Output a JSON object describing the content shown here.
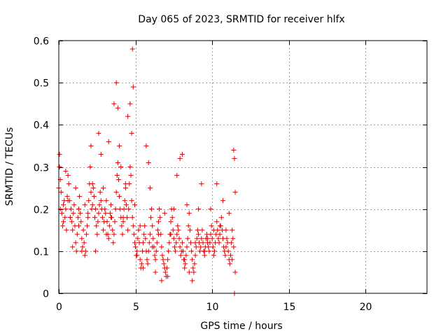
{
  "chart_data": {
    "type": "scatter",
    "title": "Day 065 of 2023, SRMTID for receiver hlfx",
    "xlabel": "GPS time / hours",
    "ylabel": "SRMTID / TECUs",
    "xlim": [
      0,
      24
    ],
    "ylim": [
      0,
      0.6
    ],
    "xticks": [
      0,
      5,
      10,
      15,
      20
    ],
    "xtick_labels": [
      "0",
      "5",
      "10",
      "15",
      "20"
    ],
    "yticks": [
      0,
      0.1,
      0.2,
      0.3,
      0.4,
      0.5,
      0.6
    ],
    "ytick_labels": [
      "0",
      "0.1",
      "0.2",
      "0.3",
      "0.4",
      "0.5",
      "0.6"
    ],
    "grid": true,
    "marker": "+",
    "marker_color": "#e00000",
    "series": [
      {
        "name": "SRMTID",
        "x": [
          0.0,
          0.05,
          0.1,
          0.15,
          0.2,
          0.25,
          0.3,
          0.35,
          0.4,
          0.45,
          0.5,
          0.55,
          0.6,
          0.65,
          0.7,
          0.75,
          0.8,
          0.85,
          0.9,
          0.95,
          1.0,
          1.05,
          1.1,
          1.15,
          1.2,
          1.25,
          1.3,
          1.35,
          1.4,
          1.45,
          1.5,
          1.55,
          1.6,
          1.65,
          1.7,
          1.75,
          1.8,
          1.85,
          1.9,
          1.95,
          2.0,
          2.05,
          2.1,
          2.15,
          2.2,
          2.25,
          2.3,
          2.35,
          2.4,
          2.45,
          2.5,
          2.55,
          2.6,
          2.65,
          2.7,
          2.75,
          2.8,
          2.85,
          2.9,
          2.95,
          3.0,
          3.05,
          3.1,
          3.15,
          3.2,
          3.25,
          3.3,
          3.35,
          3.4,
          3.45,
          3.5,
          3.55,
          3.6,
          3.65,
          3.7,
          3.75,
          3.8,
          3.85,
          3.9,
          3.95,
          4.0,
          4.05,
          4.1,
          4.15,
          4.2,
          4.25,
          4.3,
          4.35,
          4.4,
          4.45,
          4.5,
          4.55,
          4.6,
          4.65,
          4.7,
          4.75,
          4.8,
          4.85,
          4.9,
          4.95,
          5.0,
          5.05,
          5.1,
          5.15,
          5.2,
          5.25,
          5.3,
          5.35,
          5.4,
          5.45,
          5.5,
          5.55,
          5.6,
          5.65,
          5.7,
          5.75,
          5.8,
          5.85,
          5.9,
          5.95,
          6.0,
          6.05,
          6.1,
          6.15,
          6.2,
          6.25,
          6.3,
          6.35,
          6.4,
          6.45,
          6.5,
          6.55,
          6.6,
          6.65,
          6.7,
          6.75,
          6.8,
          6.85,
          6.9,
          6.95,
          7.0,
          7.05,
          7.1,
          7.15,
          7.2,
          7.25,
          7.3,
          7.35,
          7.4,
          7.45,
          7.5,
          7.55,
          7.6,
          7.65,
          7.7,
          7.75,
          7.8,
          7.85,
          7.9,
          7.95,
          8.0,
          8.05,
          8.1,
          8.15,
          8.2,
          8.25,
          8.3,
          8.35,
          8.4,
          8.45,
          8.5,
          8.55,
          8.6,
          8.65,
          8.7,
          8.75,
          8.8,
          8.85,
          8.9,
          8.95,
          9.0,
          9.05,
          9.1,
          9.15,
          9.2,
          9.25,
          9.3,
          9.35,
          9.4,
          9.45,
          9.5,
          9.55,
          9.6,
          9.65,
          9.7,
          9.75,
          9.8,
          9.85,
          9.9,
          9.95,
          10.0,
          10.05,
          10.1,
          10.15,
          10.2,
          10.25,
          10.3,
          10.35,
          10.4,
          10.45,
          10.5,
          10.55,
          10.6,
          10.65,
          10.7,
          10.75,
          10.8,
          10.85,
          10.9,
          10.95,
          11.0,
          11.05,
          11.1,
          11.15,
          11.2,
          11.25,
          11.3,
          11.35,
          11.4,
          11.45,
          11.5,
          0.05,
          0.1,
          0.3,
          0.45,
          0.6,
          0.75,
          0.9,
          1.1,
          1.3,
          1.5,
          1.7,
          1.9,
          2.1,
          2.2,
          2.4,
          2.6,
          2.75,
          2.9,
          3.1,
          3.25,
          3.4,
          3.6,
          3.75,
          3.85,
          3.95,
          4.05,
          4.2,
          4.35,
          4.5,
          4.65,
          4.75,
          4.8,
          4.85,
          4.95,
          5.1,
          5.3,
          5.5,
          5.7,
          5.85,
          5.95,
          6.1,
          6.3,
          6.5,
          6.7,
          6.9,
          7.1,
          7.3,
          7.5,
          7.7,
          7.9,
          8.05,
          8.2,
          8.35,
          8.5,
          8.7,
          8.9,
          9.1,
          9.3,
          9.5,
          9.7,
          9.9,
          10.1,
          10.3,
          10.5,
          10.7,
          10.9,
          11.1,
          11.3,
          11.4,
          11.45,
          11.5
        ],
        "y": [
          0.25,
          0.33,
          0.27,
          0.24,
          0.19,
          0.16,
          0.21,
          0.22,
          0.18,
          0.2,
          0.15,
          0.23,
          0.28,
          0.26,
          0.22,
          0.18,
          0.2,
          0.17,
          0.15,
          0.19,
          0.21,
          0.16,
          0.12,
          0.1,
          0.14,
          0.18,
          0.2,
          0.23,
          0.19,
          0.17,
          0.13,
          0.11,
          0.15,
          0.12,
          0.09,
          0.1,
          0.14,
          0.16,
          0.19,
          0.22,
          0.26,
          0.3,
          0.24,
          0.2,
          0.21,
          0.25,
          0.23,
          0.18,
          0.2,
          0.16,
          0.14,
          0.17,
          0.19,
          0.21,
          0.24,
          0.22,
          0.2,
          0.18,
          0.15,
          0.17,
          0.2,
          0.19,
          0.22,
          0.17,
          0.14,
          0.13,
          0.16,
          0.19,
          0.21,
          0.18,
          0.15,
          0.12,
          0.14,
          0.17,
          0.2,
          0.24,
          0.28,
          0.31,
          0.27,
          0.23,
          0.2,
          0.18,
          0.16,
          0.14,
          0.17,
          0.2,
          0.22,
          0.25,
          0.21,
          0.18,
          0.15,
          0.2,
          0.26,
          0.3,
          0.28,
          0.22,
          0.18,
          0.16,
          0.14,
          0.12,
          0.11,
          0.09,
          0.1,
          0.13,
          0.15,
          0.12,
          0.08,
          0.06,
          0.07,
          0.1,
          0.12,
          0.14,
          0.16,
          0.13,
          0.1,
          0.08,
          0.07,
          0.1,
          0.12,
          0.14,
          0.18,
          0.2,
          0.16,
          0.13,
          0.11,
          0.09,
          0.08,
          0.1,
          0.12,
          0.15,
          0.17,
          0.2,
          0.18,
          0.14,
          0.11,
          0.09,
          0.08,
          0.07,
          0.06,
          0.05,
          0.04,
          0.06,
          0.08,
          0.1,
          0.12,
          0.14,
          0.17,
          0.2,
          0.18,
          0.15,
          0.13,
          0.11,
          0.1,
          0.12,
          0.14,
          0.16,
          0.15,
          0.13,
          0.11,
          0.09,
          0.1,
          0.12,
          0.1,
          0.08,
          0.06,
          0.07,
          0.09,
          0.11,
          0.13,
          0.16,
          0.19,
          0.15,
          0.12,
          0.1,
          0.08,
          0.06,
          0.05,
          0.07,
          0.09,
          0.11,
          0.13,
          0.15,
          0.14,
          0.12,
          0.1,
          0.11,
          0.13,
          0.15,
          0.12,
          0.1,
          0.09,
          0.11,
          0.13,
          0.14,
          0.12,
          0.11,
          0.1,
          0.12,
          0.14,
          0.16,
          0.13,
          0.11,
          0.09,
          0.1,
          0.12,
          0.14,
          0.17,
          0.15,
          0.13,
          0.12,
          0.14,
          0.16,
          0.18,
          0.15,
          0.13,
          0.11,
          0.1,
          0.09,
          0.11,
          0.13,
          0.12,
          0.1,
          0.08,
          0.07,
          0.09,
          0.12,
          0.15,
          0.13,
          0.11,
          0.0,
          0.24,
          0.3,
          0.2,
          0.17,
          0.29,
          0.22,
          0.18,
          0.11,
          0.25,
          0.16,
          0.1,
          0.21,
          0.18,
          0.35,
          0.26,
          0.1,
          0.38,
          0.33,
          0.25,
          0.14,
          0.36,
          0.18,
          0.45,
          0.5,
          0.44,
          0.35,
          0.3,
          0.18,
          0.26,
          0.42,
          0.45,
          0.38,
          0.58,
          0.49,
          0.21,
          0.09,
          0.16,
          0.06,
          0.35,
          0.31,
          0.25,
          0.11,
          0.05,
          0.14,
          0.03,
          0.19,
          0.04,
          0.14,
          0.2,
          0.28,
          0.32,
          0.33,
          0.08,
          0.21,
          0.05,
          0.03,
          0.12,
          0.2,
          0.26,
          0.1,
          0.13,
          0.2,
          0.15,
          0.26,
          0.16,
          0.22,
          0.15,
          0.19,
          0.08,
          0.34,
          0.32,
          0.05
        ]
      }
    ]
  }
}
